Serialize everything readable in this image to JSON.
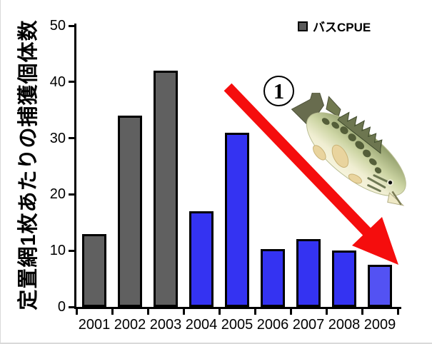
{
  "figure": {
    "y_axis_title": "定置網1枚あたりの捕獲個体数",
    "legend": {
      "label": "バスCPUE",
      "marker_color": "#595959",
      "marker_border_color": "#000000"
    },
    "annotation": {
      "circled_number": "1",
      "arrow_color": "#F50D0D",
      "arrow_direction": "down-right",
      "fish": "largemouth-bass-illustration"
    }
  },
  "chart_data": {
    "type": "bar",
    "title": "",
    "categories": [
      "2001",
      "2002",
      "2003",
      "2004",
      "2005",
      "2006",
      "2007",
      "2008",
      "2009"
    ],
    "values": [
      13,
      34,
      42,
      17,
      31,
      10.3,
      12,
      10,
      7.5
    ],
    "bar_colors": [
      "#606060",
      "#606060",
      "#606060",
      "#3433F2",
      "#3433F2",
      "#3433F2",
      "#3433F2",
      "#3433F2",
      "#5352F3"
    ],
    "bar_border_color": "#000000",
    "series": [
      {
        "name": "バスCPUE",
        "values": [
          13,
          34,
          42,
          17,
          31,
          10.3,
          12,
          10,
          7.5
        ]
      }
    ],
    "xlabel": "",
    "ylabel": "定置網1枚あたりの捕獲個体数",
    "ylim": [
      0,
      50
    ],
    "yticks": [
      0,
      10,
      20,
      30,
      40,
      50
    ],
    "grid": false,
    "legend_position": "top-right"
  }
}
